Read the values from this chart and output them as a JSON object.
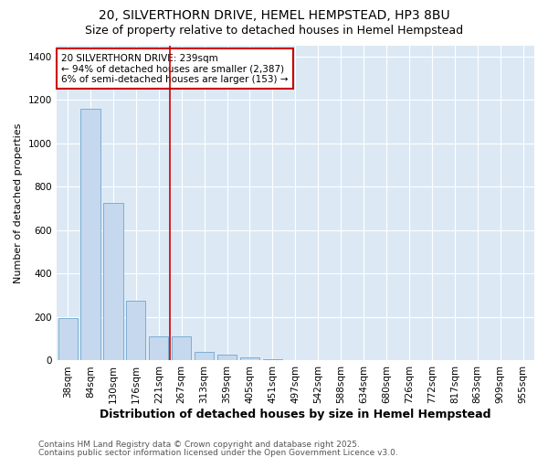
{
  "title1": "20, SILVERTHORN DRIVE, HEMEL HEMPSTEAD, HP3 8BU",
  "title2": "Size of property relative to detached houses in Hemel Hempstead",
  "xlabel": "Distribution of detached houses by size in Hemel Hempstead",
  "ylabel": "Number of detached properties",
  "categories": [
    "38sqm",
    "84sqm",
    "130sqm",
    "176sqm",
    "221sqm",
    "267sqm",
    "313sqm",
    "359sqm",
    "405sqm",
    "451sqm",
    "497sqm",
    "542sqm",
    "588sqm",
    "634sqm",
    "680sqm",
    "726sqm",
    "772sqm",
    "817sqm",
    "863sqm",
    "909sqm",
    "955sqm"
  ],
  "values": [
    197,
    1160,
    725,
    275,
    110,
    110,
    40,
    28,
    15,
    8,
    4,
    0,
    3,
    0,
    0,
    0,
    0,
    0,
    0,
    0,
    0
  ],
  "bar_color": "#c5d8ee",
  "bar_edge_color": "#7bafd4",
  "red_line_x": 4.5,
  "annotation_text": "20 SILVERTHORN DRIVE: 239sqm\n← 94% of detached houses are smaller (2,387)\n6% of semi-detached houses are larger (153) →",
  "annotation_box_color": "#ffffff",
  "annotation_box_edge": "#cc0000",
  "ylim": [
    0,
    1450
  ],
  "yticks": [
    0,
    200,
    400,
    600,
    800,
    1000,
    1200,
    1400
  ],
  "bg_color": "#dce9f5",
  "fig_bg_color": "#ffffff",
  "footer1": "Contains HM Land Registry data © Crown copyright and database right 2025.",
  "footer2": "Contains public sector information licensed under the Open Government Licence v3.0.",
  "title_fontsize": 10,
  "subtitle_fontsize": 9,
  "xlabel_fontsize": 9,
  "ylabel_fontsize": 8,
  "tick_fontsize": 7.5,
  "footer_fontsize": 6.5,
  "annotation_fontsize": 7.5
}
